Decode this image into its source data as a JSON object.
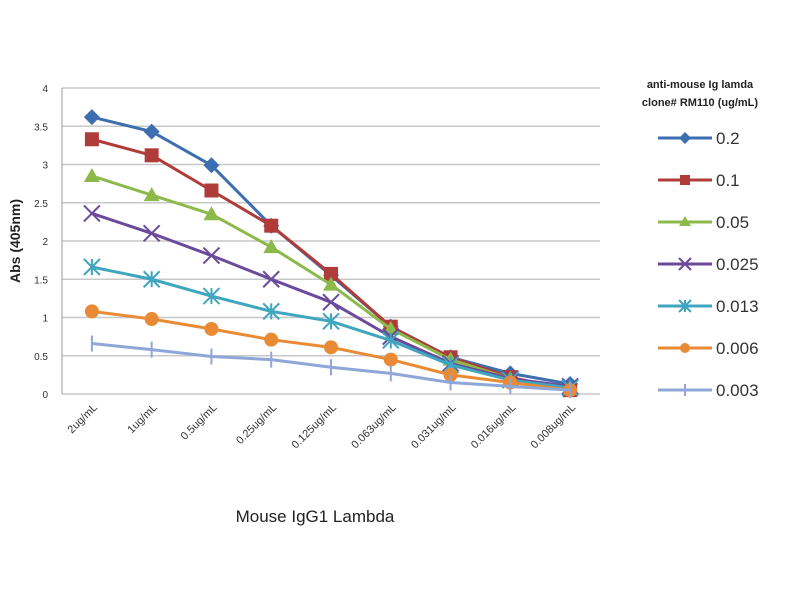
{
  "chart_data": {
    "type": "line",
    "title": "",
    "xlabel": "Mouse IgG1 Lambda",
    "ylabel": "Abs (405nm)",
    "ylim": [
      0,
      4
    ],
    "yticks": [
      "0",
      "0.5",
      "1",
      "1.5",
      "2",
      "2.5",
      "3",
      "3.5",
      "4"
    ],
    "grid": true,
    "legend_title": [
      "anti-mouse Ig lamda",
      "clone# RM110 (ug/mL)"
    ],
    "legend_position": "right",
    "categories": [
      "2ug/mL",
      "1ug/mL",
      "0.5ug/mL",
      "0.25ug/mL",
      "0.125ug/mL",
      "0.063ug/mL",
      "0.031ug/mL",
      "0.016ug/mL",
      "0.008ug/mL"
    ],
    "series": [
      {
        "name": "0.2",
        "color": "#3d6eb0",
        "marker": "diamond",
        "values": [
          3.62,
          3.43,
          2.99,
          2.2,
          1.55,
          0.88,
          0.48,
          0.27,
          0.13
        ]
      },
      {
        "name": "0.1",
        "color": "#b03c3a",
        "marker": "square",
        "values": [
          3.33,
          3.12,
          2.66,
          2.2,
          1.57,
          0.88,
          0.48,
          0.22,
          0.05
        ]
      },
      {
        "name": "0.05",
        "color": "#8cba4a",
        "marker": "triangle",
        "values": [
          2.85,
          2.6,
          2.35,
          1.92,
          1.43,
          0.85,
          0.45,
          0.2,
          0.08
        ]
      },
      {
        "name": "0.025",
        "color": "#6a4a9a",
        "marker": "x",
        "values": [
          2.36,
          2.1,
          1.81,
          1.5,
          1.2,
          0.75,
          0.4,
          0.2,
          0.1
        ]
      },
      {
        "name": "0.013",
        "color": "#3fa6c0",
        "marker": "star",
        "values": [
          1.66,
          1.5,
          1.28,
          1.08,
          0.95,
          0.7,
          0.38,
          0.18,
          0.08
        ]
      },
      {
        "name": "0.006",
        "color": "#e98a35",
        "marker": "circle",
        "values": [
          1.08,
          0.98,
          0.85,
          0.71,
          0.61,
          0.45,
          0.25,
          0.15,
          0.05
        ]
      },
      {
        "name": "0.003",
        "color": "#8fa6d8",
        "marker": "plus",
        "values": [
          0.66,
          0.58,
          0.49,
          0.45,
          0.35,
          0.27,
          0.15,
          0.1,
          0.05
        ]
      }
    ]
  }
}
